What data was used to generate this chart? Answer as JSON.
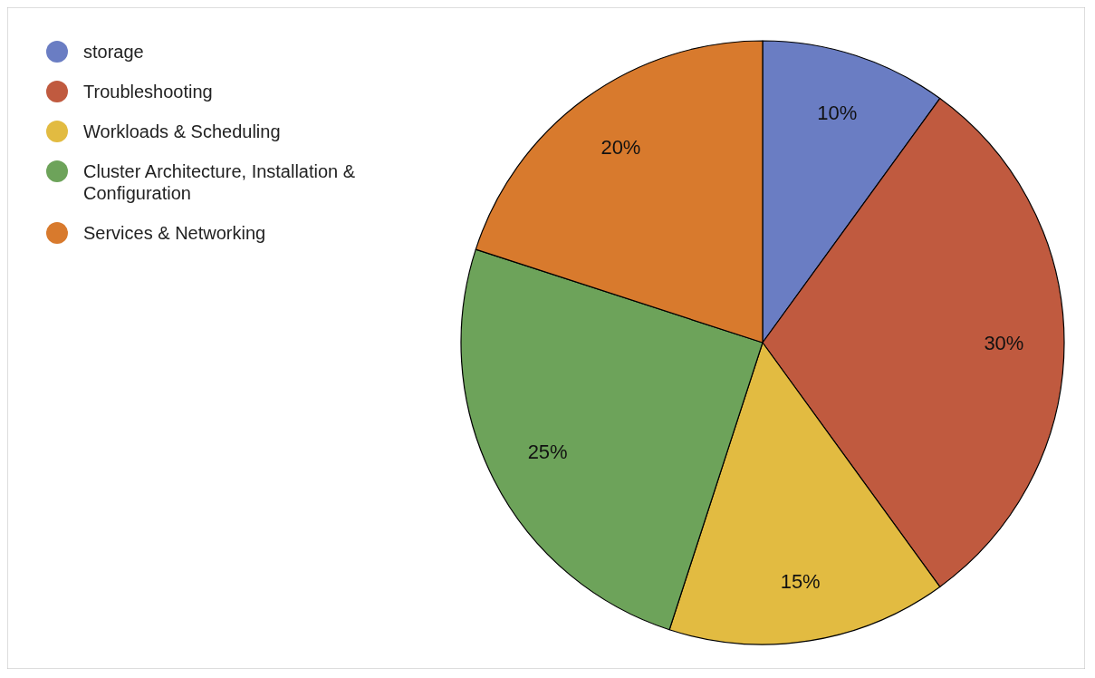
{
  "chart_data": {
    "type": "pie",
    "categories": [
      "storage",
      "Troubleshooting",
      "Workloads & Scheduling",
      "Cluster Architecture, Installation & Configuration",
      "Services & Networking"
    ],
    "values": [
      10,
      30,
      15,
      25,
      20
    ],
    "colors": [
      "#6a7dc3",
      "#c05a3f",
      "#e2bb41",
      "#6da35a",
      "#d87a2d"
    ],
    "value_labels": [
      "10%",
      "30%",
      "15%",
      "25%",
      "20%"
    ],
    "legend": "top left"
  }
}
